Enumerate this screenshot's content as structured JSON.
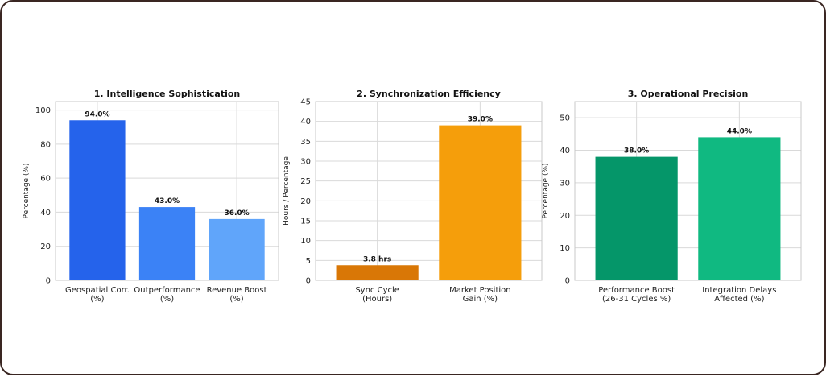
{
  "chart_data": [
    {
      "type": "bar",
      "title": "1. Intelligence Sophistication",
      "ylabel": "Percentage (%)",
      "xlabel": "",
      "categories": [
        [
          "Geospatial Corr.",
          "(%)"
        ],
        [
          "Outperformance",
          "(%)"
        ],
        [
          "Revenue Boost",
          "(%)"
        ]
      ],
      "values": [
        94.0,
        43.0,
        36.0
      ],
      "value_labels": [
        "94.0%",
        "43.0%",
        "36.0%"
      ],
      "colors": [
        "#2563eb",
        "#3b82f6",
        "#60a5fa"
      ],
      "ylim": [
        0,
        105
      ],
      "yticks": [
        0,
        20,
        40,
        60,
        80,
        100
      ],
      "grid": true
    },
    {
      "type": "bar",
      "title": "2. Synchronization Efficiency",
      "ylabel": "Hours / Percentage",
      "xlabel": "",
      "categories": [
        [
          "Sync Cycle",
          "(Hours)"
        ],
        [
          "Market Position",
          "Gain (%)"
        ]
      ],
      "values": [
        3.8,
        39.0
      ],
      "value_labels": [
        "3.8 hrs",
        "39.0%"
      ],
      "colors": [
        "#d97706",
        "#f59e0b"
      ],
      "ylim": [
        0,
        45
      ],
      "yticks": [
        0,
        5,
        10,
        15,
        20,
        25,
        30,
        35,
        40,
        45
      ],
      "grid": true
    },
    {
      "type": "bar",
      "title": "3. Operational Precision",
      "ylabel": "Percentage (%)",
      "xlabel": "",
      "categories": [
        [
          "Performance Boost",
          "(26-31 Cycles %)"
        ],
        [
          "Integration Delays",
          "Affected (%)"
        ]
      ],
      "values": [
        38.0,
        44.0
      ],
      "value_labels": [
        "38.0%",
        "44.0%"
      ],
      "colors": [
        "#059669",
        "#10b981"
      ],
      "ylim": [
        0,
        55
      ],
      "yticks": [
        0,
        10,
        20,
        30,
        40,
        50
      ],
      "grid": true
    }
  ]
}
